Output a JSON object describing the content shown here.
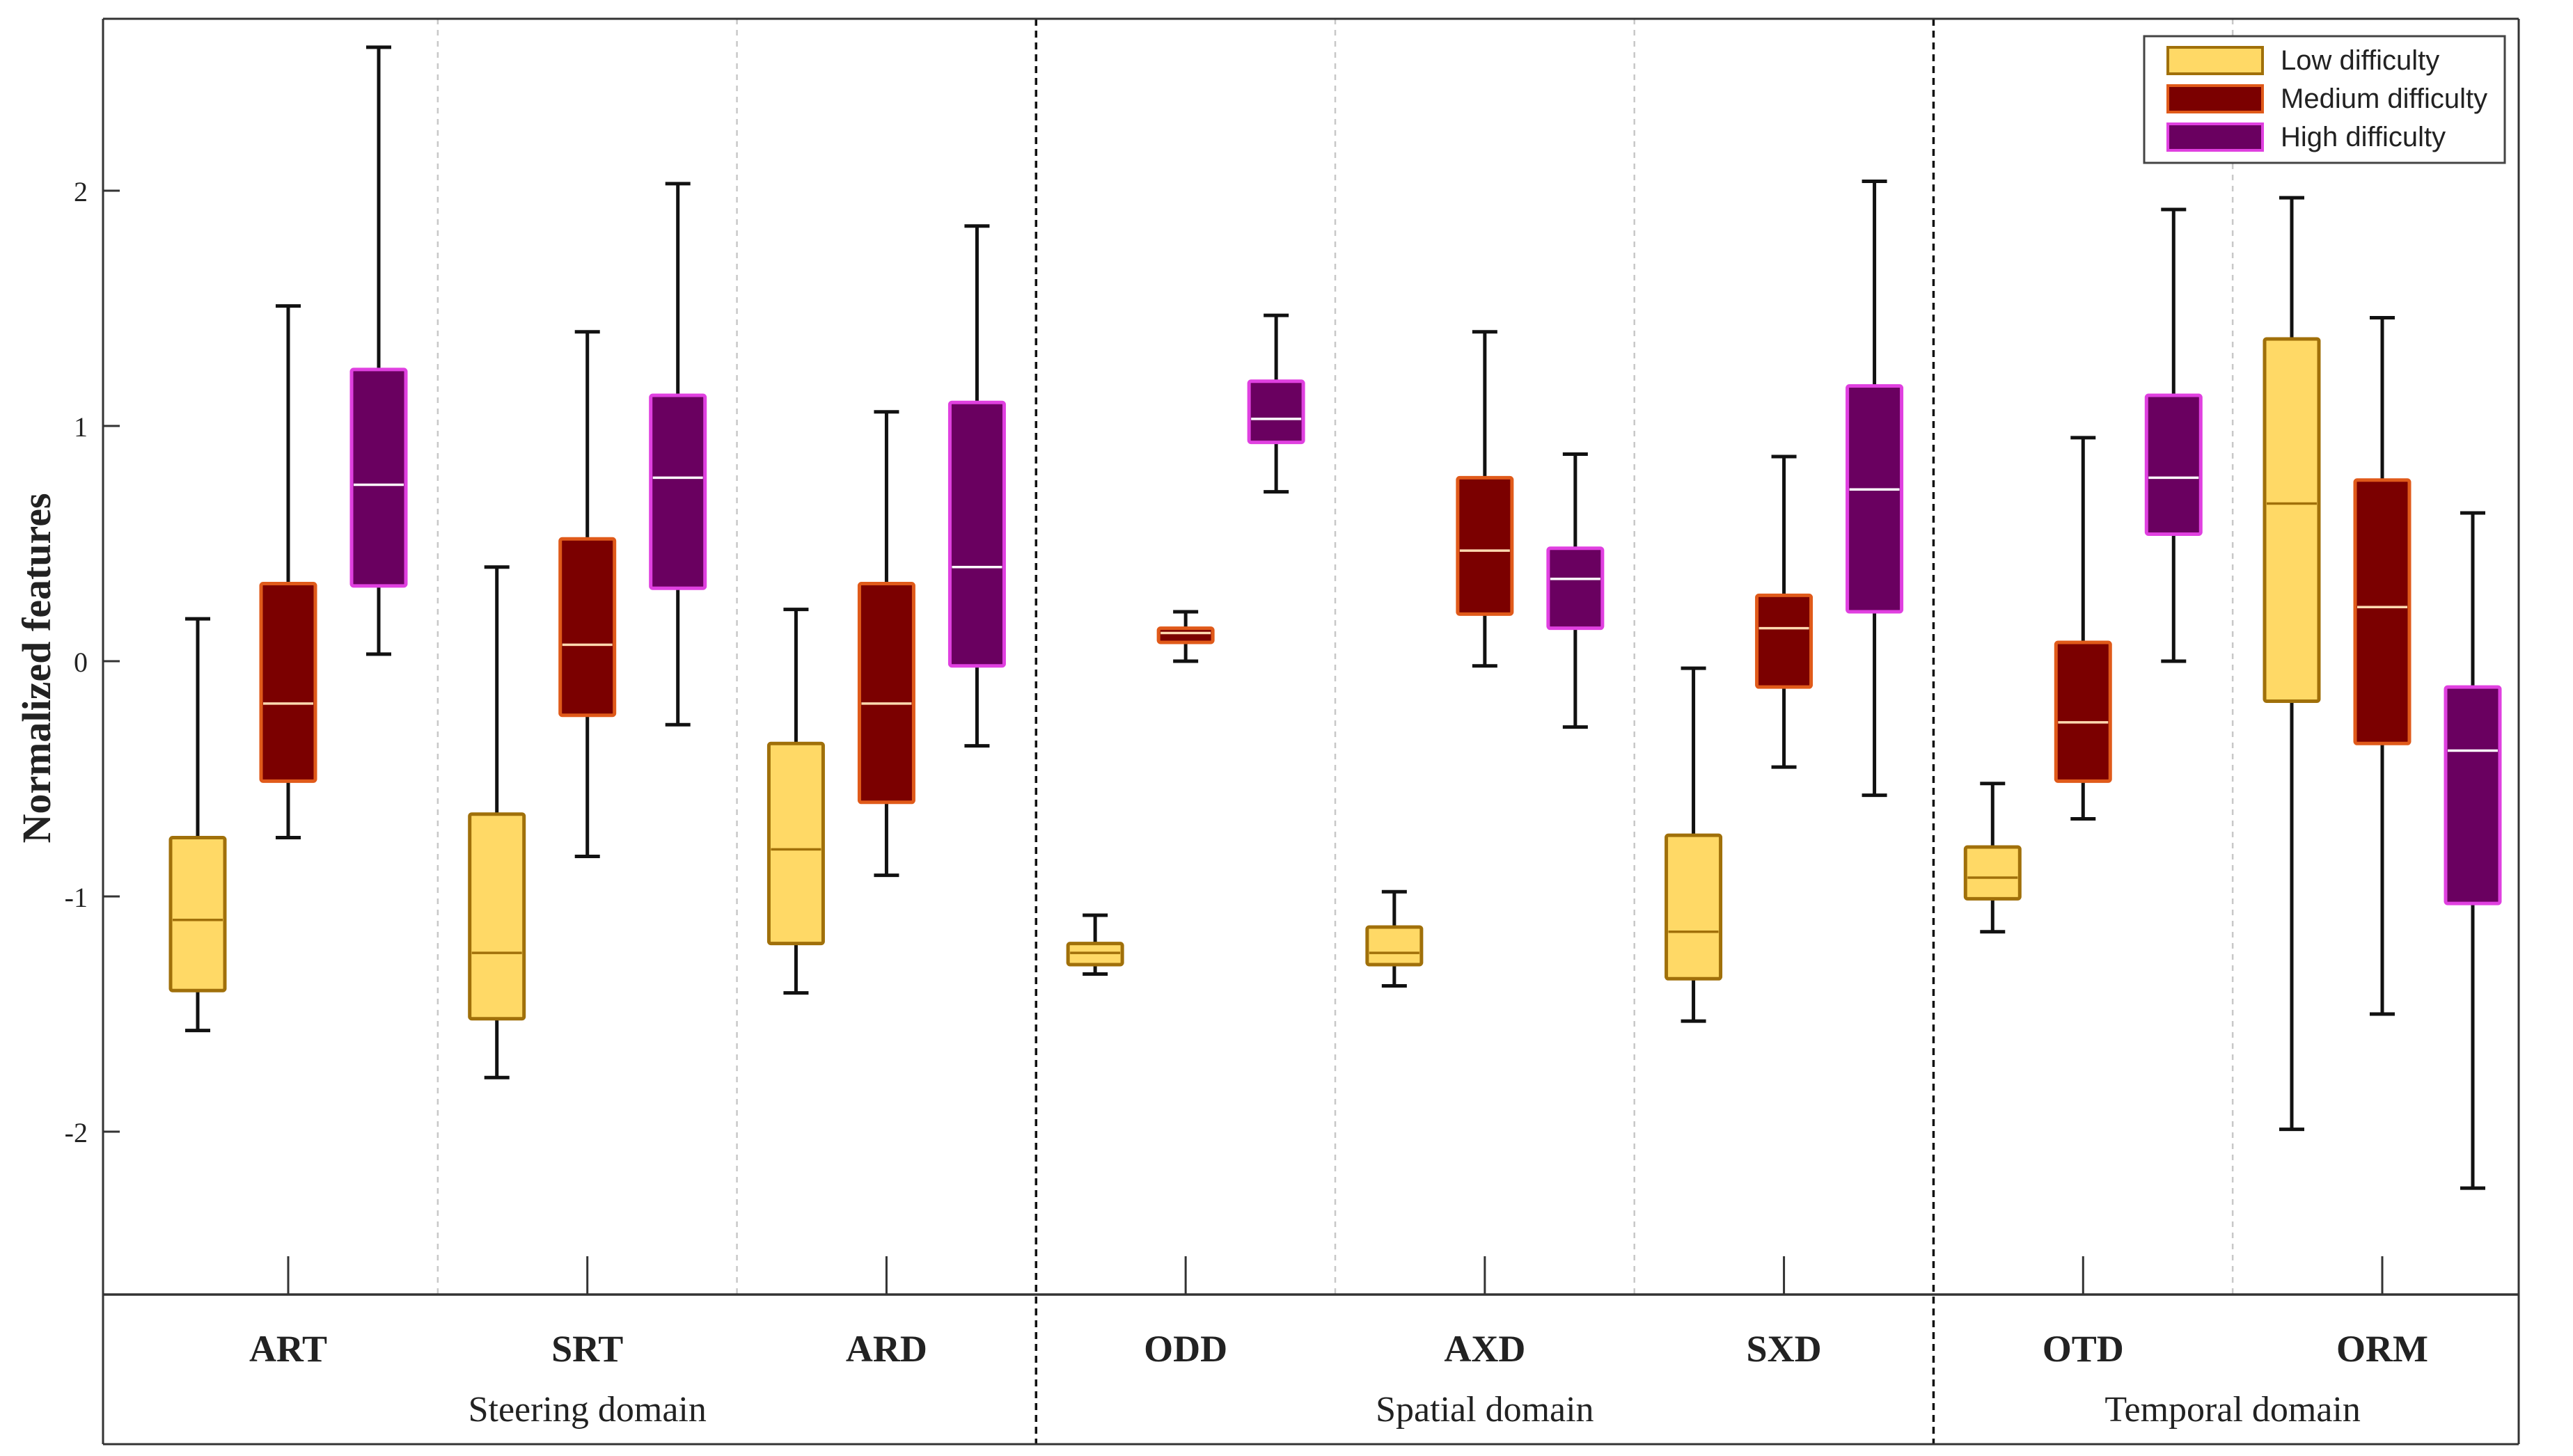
{
  "chart_data": {
    "type": "boxplot",
    "ylabel": "Normalized features",
    "ylim": [
      -2.7,
      2.8
    ],
    "yticks": [
      -2,
      -1,
      0,
      1,
      2
    ],
    "ytick_labels": [
      "-2",
      "-1",
      "0",
      "1",
      "2"
    ],
    "grid": false,
    "legend_position": "top-right",
    "legend": [
      {
        "name": "Low difficulty",
        "fill": "#FFD966",
        "edge": "#A0700A"
      },
      {
        "name": "Medium difficulty",
        "fill": "#7B0000",
        "edge": "#E05A1A"
      },
      {
        "name": "High difficulty",
        "fill": "#6A0060",
        "edge": "#E040E0"
      }
    ],
    "median_colors": [
      "#A0700A",
      "#FFD9B0",
      "#FFFFFF"
    ],
    "whisker_color": "#111111",
    "domains": [
      {
        "label": "Steering domain",
        "features": [
          "ART",
          "SRT",
          "ARD"
        ]
      },
      {
        "label": "Spatial domain",
        "features": [
          "ODD",
          "AXD",
          "SXD"
        ]
      },
      {
        "label": "Temporal domain",
        "features": [
          "OTD",
          "ORM"
        ]
      }
    ],
    "features": [
      {
        "name": "ART",
        "boxes": [
          {
            "min": -1.57,
            "q1": -1.4,
            "median": -1.1,
            "q3": -0.75,
            "max": 0.18
          },
          {
            "min": -0.75,
            "q1": -0.51,
            "median": -0.18,
            "q3": 0.33,
            "max": 1.51
          },
          {
            "min": 0.03,
            "q1": 0.32,
            "median": 0.75,
            "q3": 1.24,
            "max": 2.61
          }
        ]
      },
      {
        "name": "SRT",
        "boxes": [
          {
            "min": -1.77,
            "q1": -1.52,
            "median": -1.24,
            "q3": -0.65,
            "max": 0.4
          },
          {
            "min": -0.83,
            "q1": -0.23,
            "median": 0.07,
            "q3": 0.52,
            "max": 1.4
          },
          {
            "min": -0.27,
            "q1": 0.31,
            "median": 0.78,
            "q3": 1.13,
            "max": 2.03
          }
        ]
      },
      {
        "name": "ARD",
        "boxes": [
          {
            "min": -1.41,
            "q1": -1.2,
            "median": -0.8,
            "q3": -0.35,
            "max": 0.22
          },
          {
            "min": -0.91,
            "q1": -0.6,
            "median": -0.18,
            "q3": 0.33,
            "max": 1.06
          },
          {
            "min": -0.36,
            "q1": -0.02,
            "median": 0.4,
            "q3": 1.1,
            "max": 1.85
          }
        ]
      },
      {
        "name": "ODD",
        "boxes": [
          {
            "min": -1.33,
            "q1": -1.29,
            "median": -1.24,
            "q3": -1.2,
            "max": -1.08
          },
          {
            "min": 0.0,
            "q1": 0.08,
            "median": 0.12,
            "q3": 0.14,
            "max": 0.21
          },
          {
            "min": 0.72,
            "q1": 0.93,
            "median": 1.03,
            "q3": 1.19,
            "max": 1.47
          }
        ]
      },
      {
        "name": "AXD",
        "boxes": [
          {
            "min": -1.38,
            "q1": -1.29,
            "median": -1.24,
            "q3": -1.13,
            "max": -0.98
          },
          {
            "min": -0.02,
            "q1": 0.2,
            "median": 0.47,
            "q3": 0.78,
            "max": 1.4
          },
          {
            "min": -0.28,
            "q1": 0.14,
            "median": 0.35,
            "q3": 0.48,
            "max": 0.88
          }
        ]
      },
      {
        "name": "SXD",
        "boxes": [
          {
            "min": -1.53,
            "q1": -1.35,
            "median": -1.15,
            "q3": -0.74,
            "max": -0.03
          },
          {
            "min": -0.45,
            "q1": -0.11,
            "median": 0.14,
            "q3": 0.28,
            "max": 0.87
          },
          {
            "min": -0.57,
            "q1": 0.21,
            "median": 0.73,
            "q3": 1.17,
            "max": 2.04
          }
        ]
      },
      {
        "name": "OTD",
        "boxes": [
          {
            "min": -1.15,
            "q1": -1.01,
            "median": -0.92,
            "q3": -0.79,
            "max": -0.52
          },
          {
            "min": -0.67,
            "q1": -0.51,
            "median": -0.26,
            "q3": 0.08,
            "max": 0.95
          },
          {
            "min": 0.0,
            "q1": 0.54,
            "median": 0.78,
            "q3": 1.13,
            "max": 1.92
          }
        ]
      },
      {
        "name": "ORM",
        "boxes": [
          {
            "min": -1.99,
            "q1": -0.17,
            "median": 0.67,
            "q3": 1.37,
            "max": 1.97
          },
          {
            "min": -1.5,
            "q1": -0.35,
            "median": 0.23,
            "q3": 0.77,
            "max": 1.46
          },
          {
            "min": -2.24,
            "q1": -1.03,
            "median": -0.38,
            "q3": -0.11,
            "max": 0.63
          }
        ]
      }
    ]
  }
}
